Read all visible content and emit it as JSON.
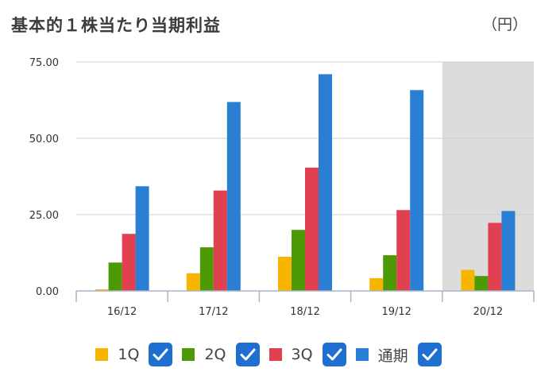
{
  "title": "基本的１株当たり当期利益",
  "unit": "（円）",
  "colors": {
    "q1": "#f7b500",
    "q2": "#4e9a06",
    "q3": "#e0404f",
    "full": "#2a7fd4",
    "highlight_band": "#dcdcdc",
    "checkbox": "#1f6fd0"
  },
  "legend": [
    {
      "label": "1Q",
      "color": "#f7b500",
      "checked": true,
      "icon": "check-icon"
    },
    {
      "label": "2Q",
      "color": "#4e9a06",
      "checked": true,
      "icon": "check-icon"
    },
    {
      "label": "3Q",
      "color": "#e0404f",
      "checked": true,
      "icon": "check-icon"
    },
    {
      "label": "通期",
      "color": "#2a7fd4",
      "checked": true,
      "icon": "check-icon"
    }
  ],
  "chart_data": {
    "type": "bar",
    "title": "基本的１株当たり当期利益",
    "ylabel": "（円）",
    "xlabel": "",
    "categories": [
      "16/12",
      "17/12",
      "18/12",
      "19/12",
      "20/12"
    ],
    "ylim": [
      0,
      75
    ],
    "yticks": [
      "0.00",
      "25.00",
      "50.00",
      "75.00"
    ],
    "grid": true,
    "legend_position": "bottom",
    "highlighted_category": "20/12",
    "series": [
      {
        "name": "1Q",
        "color": "#f7b500",
        "values": [
          0.5,
          5.8,
          11.2,
          4.2,
          6.9
        ]
      },
      {
        "name": "2Q",
        "color": "#4e9a06",
        "values": [
          9.3,
          14.3,
          20.0,
          11.7,
          4.9
        ]
      },
      {
        "name": "3Q",
        "color": "#e0404f",
        "values": [
          18.7,
          32.9,
          40.4,
          26.5,
          22.3
        ]
      },
      {
        "name": "通期",
        "color": "#2a7fd4",
        "values": [
          34.3,
          61.9,
          71.0,
          65.8,
          26.2
        ]
      }
    ]
  }
}
